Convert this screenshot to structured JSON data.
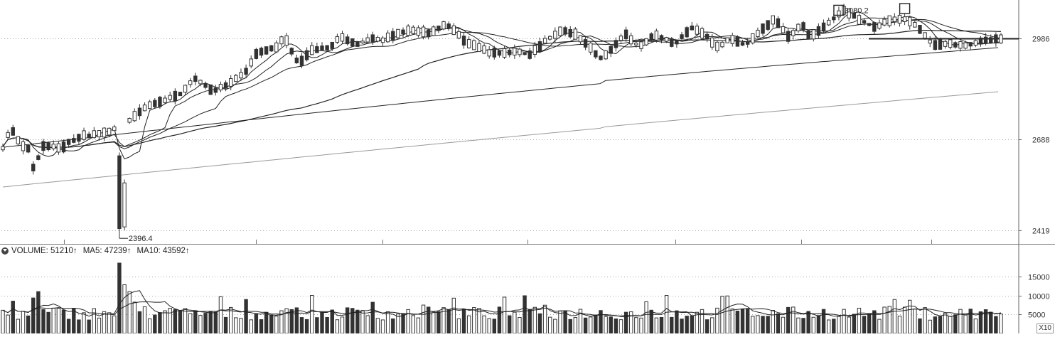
{
  "chart_data": [
    {
      "type": "candlestick",
      "ylim": [
        2380,
        3100
      ],
      "y_ticks": [
        2419,
        2688,
        2986
      ],
      "grid": true,
      "annotations": [
        {
          "label": "3080.2",
          "kind": "high"
        },
        {
          "label": "2396.4",
          "kind": "low"
        }
      ]
    },
    {
      "type": "bar",
      "ylim": [
        0,
        20000
      ],
      "y_ticks": [
        5000,
        10000,
        15000
      ],
      "legend": {
        "volume": "VOLUME: 51210↑",
        "ma5": "MA5: 47239↑",
        "ma10": "MA10: 43592↑"
      },
      "unit_label": "X10"
    }
  ],
  "colors": {
    "grid": "#aaaaaa",
    "candle": "#333333",
    "ma_dark": "#222222",
    "ma_light": "#999999"
  }
}
